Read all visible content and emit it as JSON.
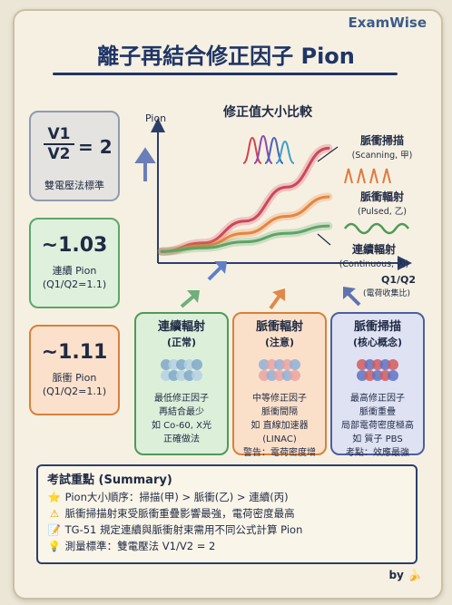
{
  "brand": "ExamWise",
  "title": "離子再結合修正因子 Pion",
  "left_boxes": {
    "ratio": {
      "v1": "V1",
      "v2": "V2",
      "eq": "= 2",
      "caption": "雙電壓法標準"
    },
    "continuous": {
      "value": "~1.03",
      "label": "連續 Pion",
      "sub": "(Q1/Q2=1.1)"
    },
    "pulsed": {
      "value": "~1.11",
      "label": "脈衝 Pion",
      "sub": "(Q1/Q2=1.1)"
    }
  },
  "chart": {
    "title": "修正值大小比較",
    "y_axis": "Pion",
    "x_axis": "Q1/Q2",
    "x_sub": "(電荷收集比)",
    "scanning_label": "脈衝掃描",
    "scanning_sub": "(Scanning, 甲)",
    "pulsed_label": "脈衝輻射",
    "pulsed_sub": "(Pulsed, 乙)",
    "continuous_label": "連續輻射",
    "continuous_sub": "(Continuous, 丙)"
  },
  "chart_data": {
    "type": "line",
    "title": "修正值大小比較",
    "xlabel": "Q1/Q2",
    "ylabel": "Pion",
    "x": [
      0,
      0.25,
      0.5,
      0.75,
      1
    ],
    "series": [
      {
        "name": "脈衝掃描 (Scanning, 甲)",
        "values": [
          0.05,
          0.12,
          0.3,
          0.58,
          0.9
        ]
      },
      {
        "name": "脈衝輻射 (Pulsed, 乙)",
        "values": [
          0.05,
          0.1,
          0.2,
          0.34,
          0.5
        ]
      },
      {
        "name": "連續輻射 (Continuous, 丙)",
        "values": [
          0.05,
          0.08,
          0.13,
          0.2,
          0.26
        ]
      }
    ]
  },
  "columns": [
    {
      "title": "連續輻射",
      "sub": "(正常)",
      "lines": [
        "最低修正因子",
        "再結合最少",
        "如 Co-60, X光",
        "正確做法"
      ],
      "color": "#4f9a58",
      "bg": "#dcefd9"
    },
    {
      "title": "脈衝輻射",
      "sub": "(注意)",
      "lines": [
        "中等修正因子",
        "脈衝間隔",
        "如 直線加速器",
        "(LINAC)",
        "警告：電荷密度增"
      ],
      "color": "#d9803c",
      "bg": "#fbe0c9"
    },
    {
      "title": "脈衝掃描",
      "sub": "(核心概念)",
      "lines": [
        "最高修正因子",
        "脈衝重疊",
        "局部電荷密度極高",
        "如 質子 PBS",
        "考點：效應最強"
      ],
      "color": "#4c5fa0",
      "bg": "#dfe2f3"
    }
  ],
  "summary": {
    "heading": "考試重點 (Summary)",
    "items": [
      {
        "icon": "⭐",
        "text": "Pion大小順序：掃描(甲) > 脈衝(乙) > 連續(丙)"
      },
      {
        "icon": "⚠",
        "text": "脈衝掃描射束受脈衝重疊影響最強，電荷密度最高"
      },
      {
        "icon": "📝",
        "text": "TG-51 規定連續與脈衝射束需用不同公式計算 Pion"
      },
      {
        "icon": "💡",
        "text": "測量標準：雙電壓法 V1/V2 = 2"
      }
    ]
  },
  "by": "by"
}
